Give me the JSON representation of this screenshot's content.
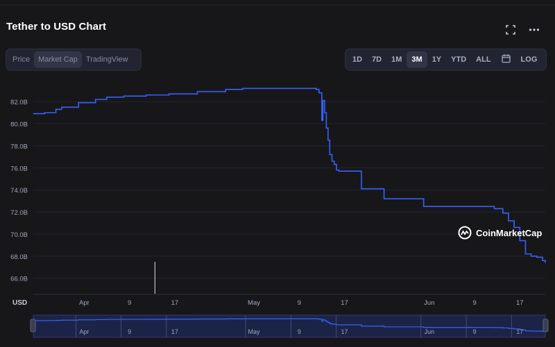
{
  "header": {
    "title": "Tether to USD Chart",
    "expand_icon": "fullscreen-icon",
    "more_icon": "more-horizontal-icon"
  },
  "view_tabs": [
    {
      "label": "Price",
      "active": false
    },
    {
      "label": "Market Cap",
      "active": true
    },
    {
      "label": "TradingView",
      "active": false
    }
  ],
  "range_tabs": [
    {
      "label": "1D",
      "active": false
    },
    {
      "label": "7D",
      "active": false
    },
    {
      "label": "1M",
      "active": false
    },
    {
      "label": "3M",
      "active": true
    },
    {
      "label": "1Y",
      "active": false
    },
    {
      "label": "YTD",
      "active": false
    },
    {
      "label": "ALL",
      "active": false
    },
    {
      "label": "",
      "icon": "calendar-icon",
      "active": false
    },
    {
      "label": "LOG",
      "active": false
    }
  ],
  "watermark": {
    "text": "CoinMarketCap",
    "icon": "coinmarketcap-logo"
  },
  "colors": {
    "line": "#3861fb",
    "background": "#17171a",
    "grid": "#222531",
    "text": "#a1a7bb",
    "navigator_fill": "#1b2447"
  },
  "chart_data": {
    "type": "line",
    "title": "Tether to USD Chart",
    "ylabel": "USD",
    "y_ticks": [
      "82.0B",
      "80.0B",
      "78.0B",
      "76.0B",
      "74.0B",
      "72.0B",
      "70.0B",
      "68.0B",
      "66.0B"
    ],
    "y_tick_values": [
      82.0,
      80.0,
      78.0,
      76.0,
      74.0,
      72.0,
      70.0,
      68.0,
      66.0
    ],
    "ylim": [
      64.6,
      83.8
    ],
    "x_ticks": [
      "Apr",
      "9",
      "17",
      "May",
      "9",
      "17",
      "Jun",
      "9",
      "17"
    ],
    "x_tick_values": [
      0,
      8,
      16,
      30,
      38,
      46,
      61,
      69,
      77
    ],
    "xlim": [
      -9,
      81.5
    ],
    "grid": true,
    "series": [
      {
        "x": [
          -9,
          -7,
          -5,
          -4,
          -1,
          2,
          4,
          7,
          11,
          15,
          20,
          25,
          28,
          33,
          40,
          41,
          41.5,
          42,
          42.2,
          42.5,
          42.8,
          43.1,
          43.4,
          43.8,
          44.2,
          44.6,
          45,
          47,
          49,
          51,
          53,
          57,
          60,
          65,
          70,
          72.5,
          74,
          75,
          76,
          77,
          78,
          79,
          80,
          81,
          81.5
        ],
        "y": [
          80.9,
          81.0,
          81.3,
          81.5,
          81.9,
          82.2,
          82.4,
          82.5,
          82.6,
          82.7,
          82.9,
          83.1,
          83.2,
          83.2,
          83.2,
          83.1,
          82.8,
          80.3,
          82.1,
          81.0,
          79.6,
          78.5,
          77.2,
          76.6,
          76.3,
          75.8,
          75.7,
          75.7,
          74.1,
          74.1,
          73.2,
          73.2,
          72.5,
          72.5,
          72.5,
          72.3,
          71.9,
          71.2,
          70.6,
          69.4,
          68.2,
          68.0,
          67.9,
          67.6,
          67.4
        ]
      }
    ],
    "volume_bars": [
      {
        "x": 12.5,
        "relative_height": 1.0
      }
    ]
  }
}
